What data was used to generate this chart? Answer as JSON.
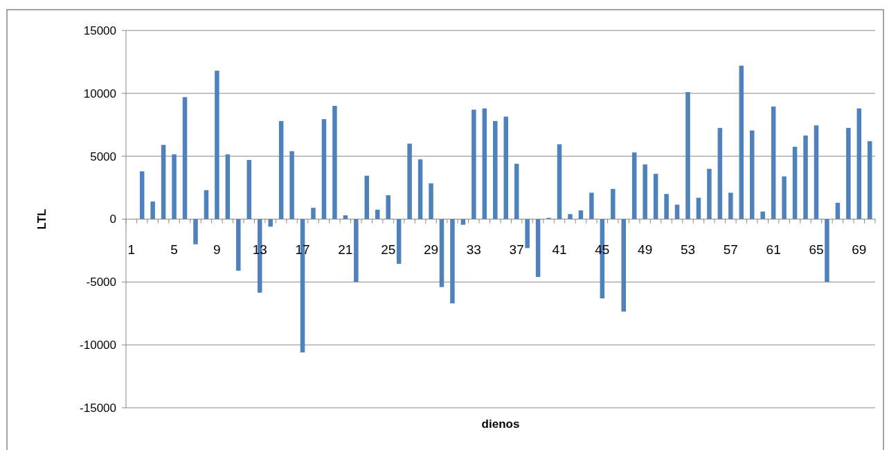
{
  "chart_data": {
    "type": "bar",
    "xlabel": "dienos",
    "ylabel": "LTL",
    "categories": [
      "1",
      null,
      null,
      null,
      "5",
      null,
      null,
      null,
      "9",
      null,
      null,
      null,
      "13",
      null,
      null,
      null,
      "17",
      null,
      null,
      null,
      "21",
      null,
      null,
      null,
      "25",
      null,
      null,
      null,
      "29",
      null,
      null,
      null,
      "33",
      null,
      null,
      null,
      "37",
      null,
      null,
      null,
      "41",
      null,
      null,
      null,
      "45",
      null,
      null,
      null,
      "49",
      null,
      null,
      null,
      "53",
      null,
      null,
      null,
      "57",
      null,
      null,
      null,
      "61",
      null,
      null,
      null,
      "65",
      null,
      null,
      null,
      "69",
      null
    ],
    "series": [
      {
        "color": "#4f81bd",
        "values": [
          0,
          3800,
          1400,
          5900,
          5150,
          9700,
          -2000,
          2300,
          11800,
          5150,
          -4100,
          4700,
          -5850,
          -600,
          7800,
          5400,
          -10600,
          900,
          7950,
          9000,
          300,
          -5000,
          3450,
          750,
          1900,
          -3550,
          6000,
          4750,
          2850,
          -5400,
          -6700,
          -450,
          8700,
          8800,
          7800,
          8150,
          4400,
          -2300,
          -4600,
          100,
          5950,
          400,
          700,
          2100,
          -6300,
          2400,
          -7350,
          5300,
          4350,
          3600,
          2000,
          1150,
          10100,
          1700,
          4000,
          7250,
          2100,
          12200,
          7050,
          600,
          8950,
          3400,
          5750,
          6650,
          7450,
          -5000,
          1300,
          7250,
          8800,
          6200
        ]
      }
    ],
    "ylim": [
      -15000,
      15000
    ],
    "yticks": [
      -15000,
      -10000,
      -5000,
      0,
      5000,
      10000,
      15000
    ],
    "grid": "y"
  }
}
